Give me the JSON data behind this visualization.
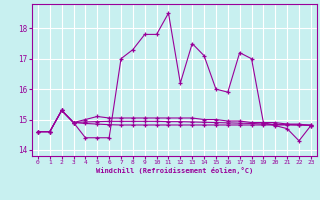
{
  "bg_color": "#c8f0f0",
  "grid_color": "#ffffff",
  "line_color": "#990099",
  "xlim": [
    -0.5,
    23.5
  ],
  "ylim": [
    13.8,
    18.8
  ],
  "yticks": [
    14,
    15,
    16,
    17,
    18
  ],
  "xticks": [
    0,
    1,
    2,
    3,
    4,
    5,
    6,
    7,
    8,
    9,
    10,
    11,
    12,
    13,
    14,
    15,
    16,
    17,
    18,
    19,
    20,
    21,
    22,
    23
  ],
  "xlabel": "Windchill (Refroidissement éolien,°C)",
  "series1_y": [
    14.6,
    14.6,
    15.3,
    14.9,
    14.4,
    14.4,
    14.4,
    17.0,
    17.3,
    17.8,
    17.8,
    18.5,
    16.2,
    17.5,
    17.1,
    16.0,
    15.9,
    17.2,
    17.0,
    14.9,
    14.8,
    14.7,
    14.3,
    14.8
  ],
  "series2_y": [
    14.6,
    14.6,
    15.3,
    14.9,
    15.0,
    15.1,
    15.05,
    15.05,
    15.05,
    15.05,
    15.05,
    15.05,
    15.05,
    15.05,
    15.0,
    15.0,
    14.95,
    14.95,
    14.9,
    14.9,
    14.9,
    14.85,
    14.85,
    14.8
  ],
  "series3_y": [
    14.6,
    14.6,
    15.3,
    14.9,
    14.87,
    14.85,
    14.83,
    14.82,
    14.82,
    14.82,
    14.82,
    14.82,
    14.82,
    14.82,
    14.82,
    14.82,
    14.82,
    14.82,
    14.82,
    14.82,
    14.82,
    14.82,
    14.82,
    14.82
  ],
  "series4_y": [
    14.6,
    14.6,
    15.3,
    14.9,
    14.92,
    14.93,
    14.94,
    14.94,
    14.94,
    14.94,
    14.94,
    14.93,
    14.93,
    14.92,
    14.91,
    14.9,
    14.89,
    14.88,
    14.87,
    14.85,
    14.84,
    14.84,
    14.82,
    14.81
  ]
}
